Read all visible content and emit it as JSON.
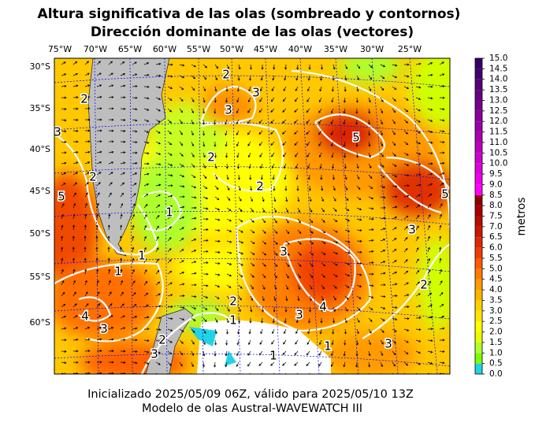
{
  "title": [
    "Altura significativa de las olas (sombreado y contornos)",
    "Dirección dominante de las olas (vectores)"
  ],
  "map": {
    "lon_labels": [
      "75°W",
      "70°W",
      "65°W",
      "60°W",
      "55°W",
      "50°W",
      "45°W",
      "40°W",
      "35°W",
      "30°W",
      "25°W"
    ],
    "lat_labels": [
      "30°S",
      "35°S",
      "40°S",
      "45°S",
      "50°S",
      "55°S",
      "60°S"
    ],
    "contour_labels": [
      "2",
      "2",
      "3",
      "3",
      "2",
      "5",
      "5",
      "3",
      "2",
      "1",
      "1",
      "1",
      "3",
      "4",
      "3",
      "2",
      "1",
      "1",
      "3",
      "4",
      "3",
      "2",
      "1",
      "3",
      "5",
      "2",
      "2",
      "3"
    ]
  },
  "colorbar": {
    "label": "metros",
    "ticks": [
      {
        "value": 0,
        "label": "0.0"
      },
      {
        "value": 0.5,
        "label": "0.5"
      },
      {
        "value": 1,
        "label": "1.0"
      },
      {
        "value": 1.5,
        "label": "1.5"
      },
      {
        "value": 2,
        "label": "2.0"
      },
      {
        "value": 2.5,
        "label": "2.5"
      },
      {
        "value": 3,
        "label": "3.0"
      },
      {
        "value": 3.5,
        "label": "3.5"
      },
      {
        "value": 4,
        "label": "4.0"
      },
      {
        "value": 4.5,
        "label": "4.5"
      },
      {
        "value": 5,
        "label": "5.0"
      },
      {
        "value": 5.5,
        "label": "5.5"
      },
      {
        "value": 6,
        "label": "6.0"
      },
      {
        "value": 6.5,
        "label": "6.5"
      },
      {
        "value": 7,
        "label": "7.0"
      },
      {
        "value": 7.5,
        "label": "7.5"
      },
      {
        "value": 8,
        "label": "8.0"
      },
      {
        "value": 8.5,
        "label": "8.5"
      },
      {
        "value": 9,
        "label": "9.0"
      },
      {
        "value": 9.5,
        "label": "9.5"
      },
      {
        "value": 10,
        "label": "10.0"
      },
      {
        "value": 10.5,
        "label": "10.5"
      },
      {
        "value": 11,
        "label": "11.0"
      },
      {
        "value": 11.5,
        "label": "11.5"
      },
      {
        "value": 12,
        "label": "12.0"
      },
      {
        "value": 12.5,
        "label": "12.5"
      },
      {
        "value": 13,
        "label": "13.0"
      },
      {
        "value": 13.5,
        "label": "13.5"
      },
      {
        "value": 14,
        "label": "14.0"
      },
      {
        "value": 14.5,
        "label": "14.5"
      },
      {
        "value": 15,
        "label": "15.0"
      }
    ],
    "colors": [
      "#22d3e6",
      "#7cfc00",
      "#adff2f",
      "#e6ff00",
      "#ffff00",
      "#ffe600",
      "#ffd000",
      "#ffb400",
      "#ff9a00",
      "#ff7a00",
      "#ff5a00",
      "#f03c00",
      "#dd2800",
      "#c81800",
      "#b80c00",
      "#a60000",
      "#900000",
      "#ff00ff",
      "#ee00ee",
      "#dd00dd",
      "#cc00cc",
      "#bb00bb",
      "#aa00aa",
      "#9900aa",
      "#880099",
      "#770088",
      "#660080",
      "#550077",
      "#44006e",
      "#330066"
    ]
  },
  "footer": [
    "Inicializado 2025/05/09 06Z, válido para 2025/05/10 13Z",
    "Modelo de olas Austral-WAVEWATCH III"
  ]
}
